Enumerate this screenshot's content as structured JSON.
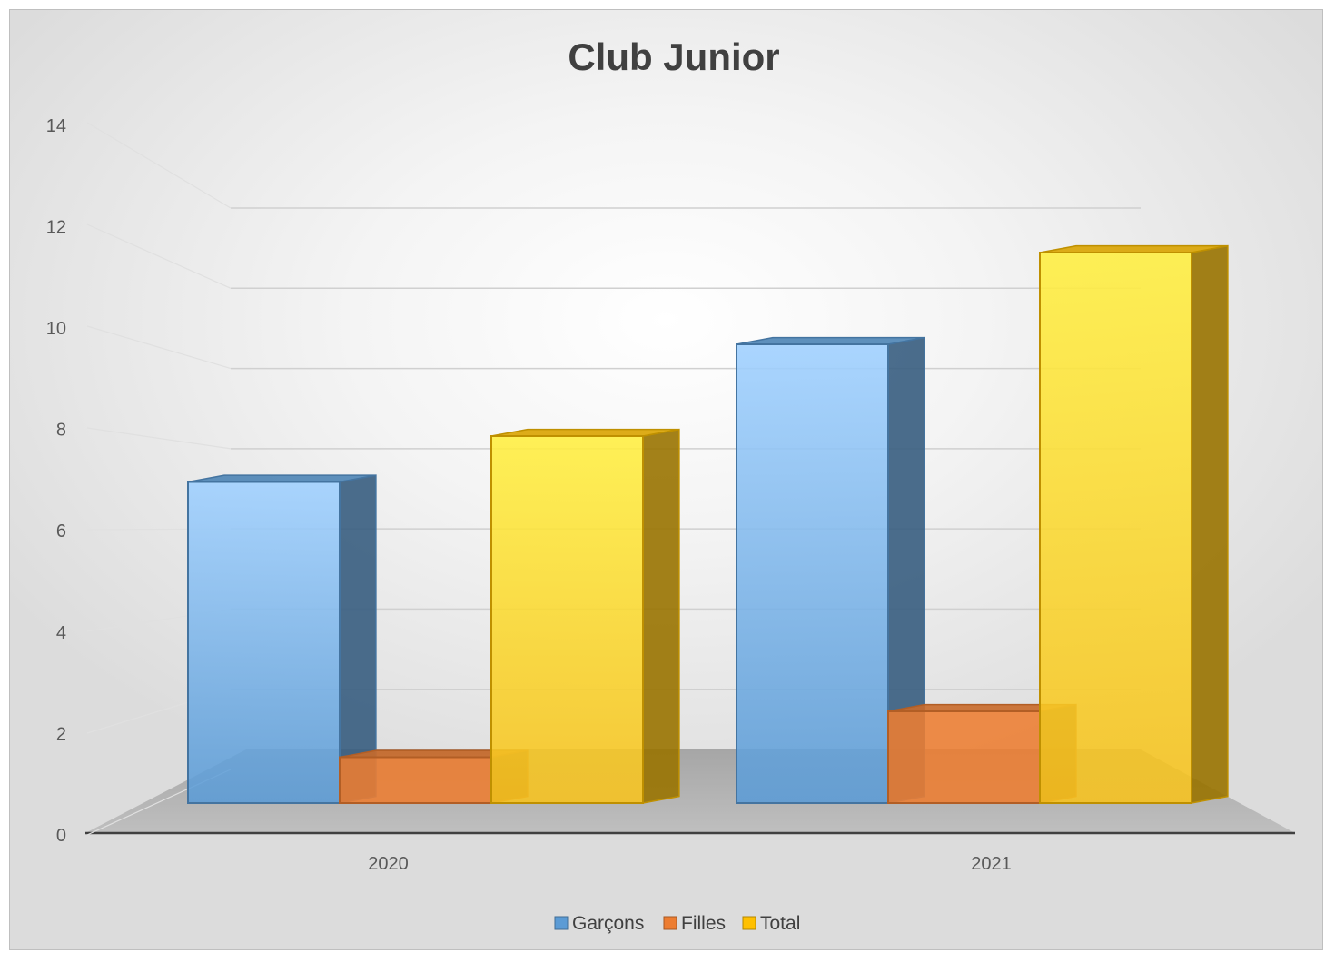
{
  "chart_data": {
    "type": "bar",
    "title": "Club Junior",
    "categories": [
      "2020",
      "2021"
    ],
    "series": [
      {
        "name": "Garçons",
        "values": [
          7,
          10
        ],
        "color": "#5b9bd5"
      },
      {
        "name": "Filles",
        "values": [
          1,
          2
        ],
        "color": "#ed7d31"
      },
      {
        "name": "Total",
        "values": [
          8,
          12
        ],
        "color": "#ffc000"
      }
    ],
    "ylim": [
      0,
      14
    ],
    "yticks": [
      "0",
      "2",
      "4",
      "6",
      "8",
      "10",
      "12",
      "14"
    ],
    "grid": true,
    "legend_position": "bottom",
    "style": "3d-clustered-column"
  }
}
